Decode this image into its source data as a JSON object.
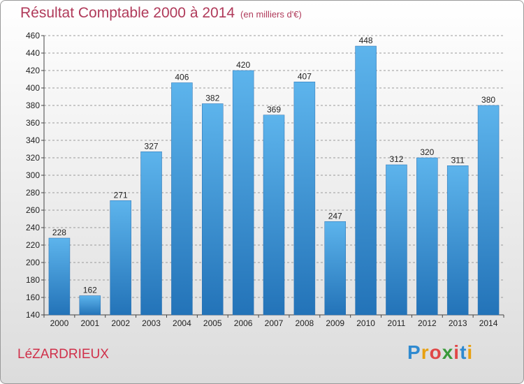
{
  "chart_data": {
    "type": "bar",
    "title": "Résultat Comptable 2000 à 2014",
    "subtitle": "(en milliers d'€)",
    "categories": [
      "2000",
      "2001",
      "2002",
      "2003",
      "2004",
      "2005",
      "2006",
      "2007",
      "2008",
      "2009",
      "2010",
      "2011",
      "2012",
      "2013",
      "2014"
    ],
    "values": [
      228,
      162,
      271,
      327,
      406,
      382,
      420,
      369,
      407,
      247,
      448,
      312,
      320,
      311,
      380
    ],
    "ylim": [
      140,
      460
    ],
    "yticks": [
      140,
      160,
      180,
      200,
      220,
      240,
      260,
      280,
      300,
      320,
      340,
      360,
      380,
      400,
      420,
      440,
      460
    ],
    "grid": true,
    "bar_color": "#3d95d8"
  },
  "commune": "LéZARDRIEUX",
  "logo": {
    "letters": [
      "P",
      "r",
      "o",
      "x",
      "i",
      "t",
      "i"
    ],
    "colors": [
      "#2f8ad0",
      "#e8a010",
      "#e04848",
      "#3a9a3a",
      "#e04848",
      "#2f8ad0",
      "#e8a010"
    ]
  }
}
